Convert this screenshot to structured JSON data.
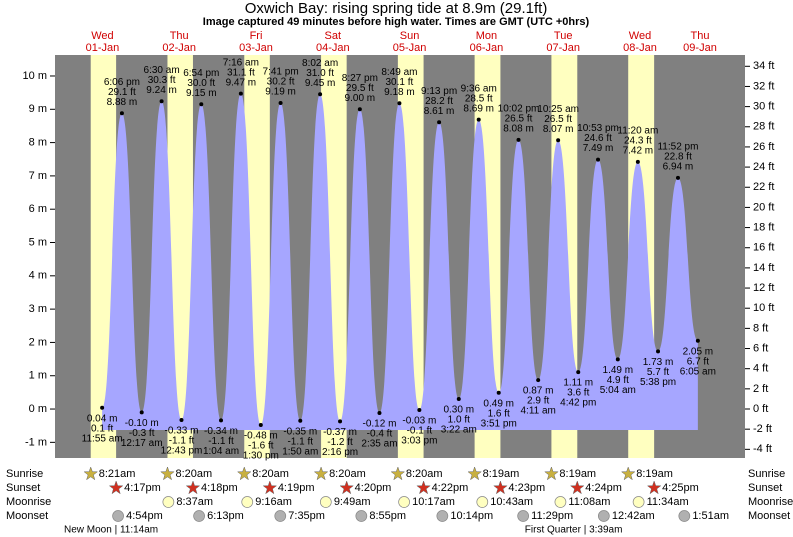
{
  "chart_data": {
    "type": "tide",
    "title": "Oxwich Bay: rising  spring tide at 8.9m (29.1ft)",
    "subtitle": "Image captured 49 minutes before high water. Times are GMT (UTC +0hrs)",
    "days": [
      "Wed",
      "Thu",
      "Fri",
      "Sat",
      "Sun",
      "Mon",
      "Tue",
      "Wed",
      "Thu"
    ],
    "dates": [
      "01-Jan",
      "02-Jan",
      "03-Jan",
      "04-Jan",
      "05-Jan",
      "06-Jan",
      "07-Jan",
      "08-Jan",
      "09-Jan"
    ],
    "ylim": [
      -1.47,
      10.63
    ],
    "yticks": [
      {
        "value": 10,
        "label": "10 m"
      },
      {
        "value": 9,
        "label": "9 m"
      },
      {
        "value": 8,
        "label": "8 m"
      },
      {
        "value": 7,
        "label": "7 m"
      },
      {
        "value": 6,
        "label": "6 m"
      },
      {
        "value": 5,
        "label": "5 m"
      },
      {
        "value": 4,
        "label": "4 m"
      },
      {
        "value": 3,
        "label": "3 m"
      },
      {
        "value": 2,
        "label": "2 m"
      },
      {
        "value": 1,
        "label": "1 m"
      },
      {
        "value": 0,
        "label": "0 m"
      },
      {
        "value": -1,
        "label": "-1 m"
      }
    ],
    "y2lim": [
      -4.86,
      35.12
    ],
    "y2ticks": [
      {
        "value": 34,
        "label": "34 ft"
      },
      {
        "value": 32,
        "label": "32 ft"
      },
      {
        "value": 30,
        "label": "30 ft"
      },
      {
        "value": 28,
        "label": "28 ft"
      },
      {
        "value": 26,
        "label": "26 ft"
      },
      {
        "value": 24,
        "label": "24 ft"
      },
      {
        "value": 22,
        "label": "22 ft"
      },
      {
        "value": 20,
        "label": "20 ft"
      },
      {
        "value": 18,
        "label": "18 ft"
      },
      {
        "value": 16,
        "label": "16 ft"
      },
      {
        "value": 14,
        "label": "14 ft"
      },
      {
        "value": 12,
        "label": "12 ft"
      },
      {
        "value": 10,
        "label": "10 ft"
      },
      {
        "value": 8,
        "label": "8 ft"
      },
      {
        "value": 6,
        "label": "6 ft"
      },
      {
        "value": 4,
        "label": "4 ft"
      },
      {
        "value": 2,
        "label": "2 ft"
      },
      {
        "value": 0,
        "label": "0 ft"
      },
      {
        "value": -2,
        "label": "-2 ft"
      },
      {
        "value": -4,
        "label": "-4 ft"
      }
    ],
    "x": [
      "11:55 am",
      "6:06 pm",
      "12:17 am",
      "6:30 am",
      "12:43 pm",
      "6:54 pm",
      "1:04 am",
      "7:16 am",
      "1:30 pm",
      "7:41 pm",
      "1:50 am",
      "8:02 am",
      "2:16 pm",
      "8:27 pm",
      "2:35 am",
      "8:49 am",
      "3:03 pm",
      "9:13 pm",
      "3:22 am",
      "9:36 am",
      "3:51 pm",
      "10:02 pm",
      "4:11 am",
      "10:25 am",
      "4:42 pm",
      "10:53 pm",
      "5:04 am",
      "11:20 am",
      "5:38 pm",
      "11:52 pm",
      "6:05 am"
    ],
    "series": [
      {
        "color": "#a6a6ff",
        "axis": "y",
        "values": [
          0.04,
          8.88,
          -0.1,
          9.24,
          -0.33,
          9.15,
          -0.34,
          9.47,
          -0.48,
          9.19,
          -0.35,
          9.45,
          -0.37,
          9.0,
          -0.12,
          9.18,
          -0.03,
          8.61,
          0.3,
          8.69,
          0.49,
          8.08,
          0.87,
          8.07,
          1.11,
          7.49,
          1.49,
          7.42,
          1.73,
          6.94,
          2.05
        ],
        "value_labels": [
          "0.04 m",
          "8.88 m",
          "-0.10 m",
          "9.24 m",
          "-0.33 m",
          "9.15 m",
          "-0.34 m",
          "9.47 m",
          "-0.48 m",
          "9.19 m",
          "-0.35 m",
          "9.45 m",
          "-0.37 m",
          "9.00 m",
          "-0.12 m",
          "9.18 m",
          "-0.03 m",
          "8.61 m",
          "0.30 m",
          "8.69 m",
          "0.49 m",
          "8.08 m",
          "0.87 m",
          "8.07 m",
          "1.11 m",
          "7.49 m",
          "1.49 m",
          "7.42 m",
          "1.73 m",
          "6.94 m",
          "2.05 m"
        ]
      },
      {
        "axis": "y2",
        "values": [
          0.1,
          29.1,
          -0.3,
          30.3,
          -1.1,
          30.0,
          -1.1,
          31.1,
          -1.6,
          30.2,
          -1.1,
          31.0,
          -1.2,
          29.5,
          -0.4,
          30.1,
          -0.1,
          28.2,
          1.0,
          28.5,
          1.6,
          26.5,
          2.9,
          26.5,
          3.6,
          24.6,
          4.9,
          24.3,
          5.7,
          22.8,
          6.7
        ],
        "value_labels": [
          "0.1 ft",
          "29.1 ft",
          "-0.3 ft",
          "30.3 ft",
          "-1.1 ft",
          "30.0 ft",
          "-1.1 ft",
          "31.1 ft",
          "-1.6 ft",
          "30.2 ft",
          "-1.1 ft",
          "31.0 ft",
          "-1.2 ft",
          "29.5 ft",
          "-0.4 ft",
          "30.1 ft",
          "-0.1 ft",
          "28.2 ft",
          "1.0 ft",
          "28.5 ft",
          "1.6 ft",
          "26.5 ft",
          "2.9 ft",
          "26.5 ft",
          "3.6 ft",
          "24.6 ft",
          "4.9 ft",
          "24.3 ft",
          "5.7 ft",
          "22.8 ft",
          "6.7 ft"
        ]
      }
    ],
    "rows": [
      {
        "name": "Sunrise",
        "color": "#c8b040",
        "shape": "star",
        "times": [
          "8:21am",
          "8:20am",
          "8:20am",
          "8:20am",
          "8:20am",
          "8:19am",
          "8:19am",
          "8:19am",
          null
        ]
      },
      {
        "name": "Sunset",
        "color": "#d03020",
        "shape": "star",
        "times": [
          "4:17pm",
          "4:18pm",
          "4:19pm",
          "4:20pm",
          "4:22pm",
          "4:23pm",
          "4:24pm",
          "4:25pm",
          null
        ]
      },
      {
        "name": "Moonrise",
        "color": "#ffffc0",
        "shape": "circle",
        "times": [
          null,
          "8:37am",
          "9:16am",
          "9:49am",
          "10:17am",
          "10:43am",
          "11:08am",
          "11:34am",
          null
        ]
      },
      {
        "name": "Moonset",
        "color": "#b0b0b0",
        "shape": "circle",
        "times": [
          "4:54pm",
          "6:13pm",
          "7:35pm",
          "8:55pm",
          "10:14pm",
          "11:29pm",
          null,
          "12:42am",
          "1:51am"
        ]
      }
    ],
    "moon_phases": [
      null,
      null,
      null,
      null,
      null,
      null,
      null,
      null,
      null
    ],
    "moon_phase_labels": [
      "New Moon | 11:14am",
      null,
      null,
      null,
      null,
      null,
      "First Quarter | 3:39am",
      null,
      null
    ],
    "night_color": "#808080",
    "day_color": "#ffffc0"
  }
}
